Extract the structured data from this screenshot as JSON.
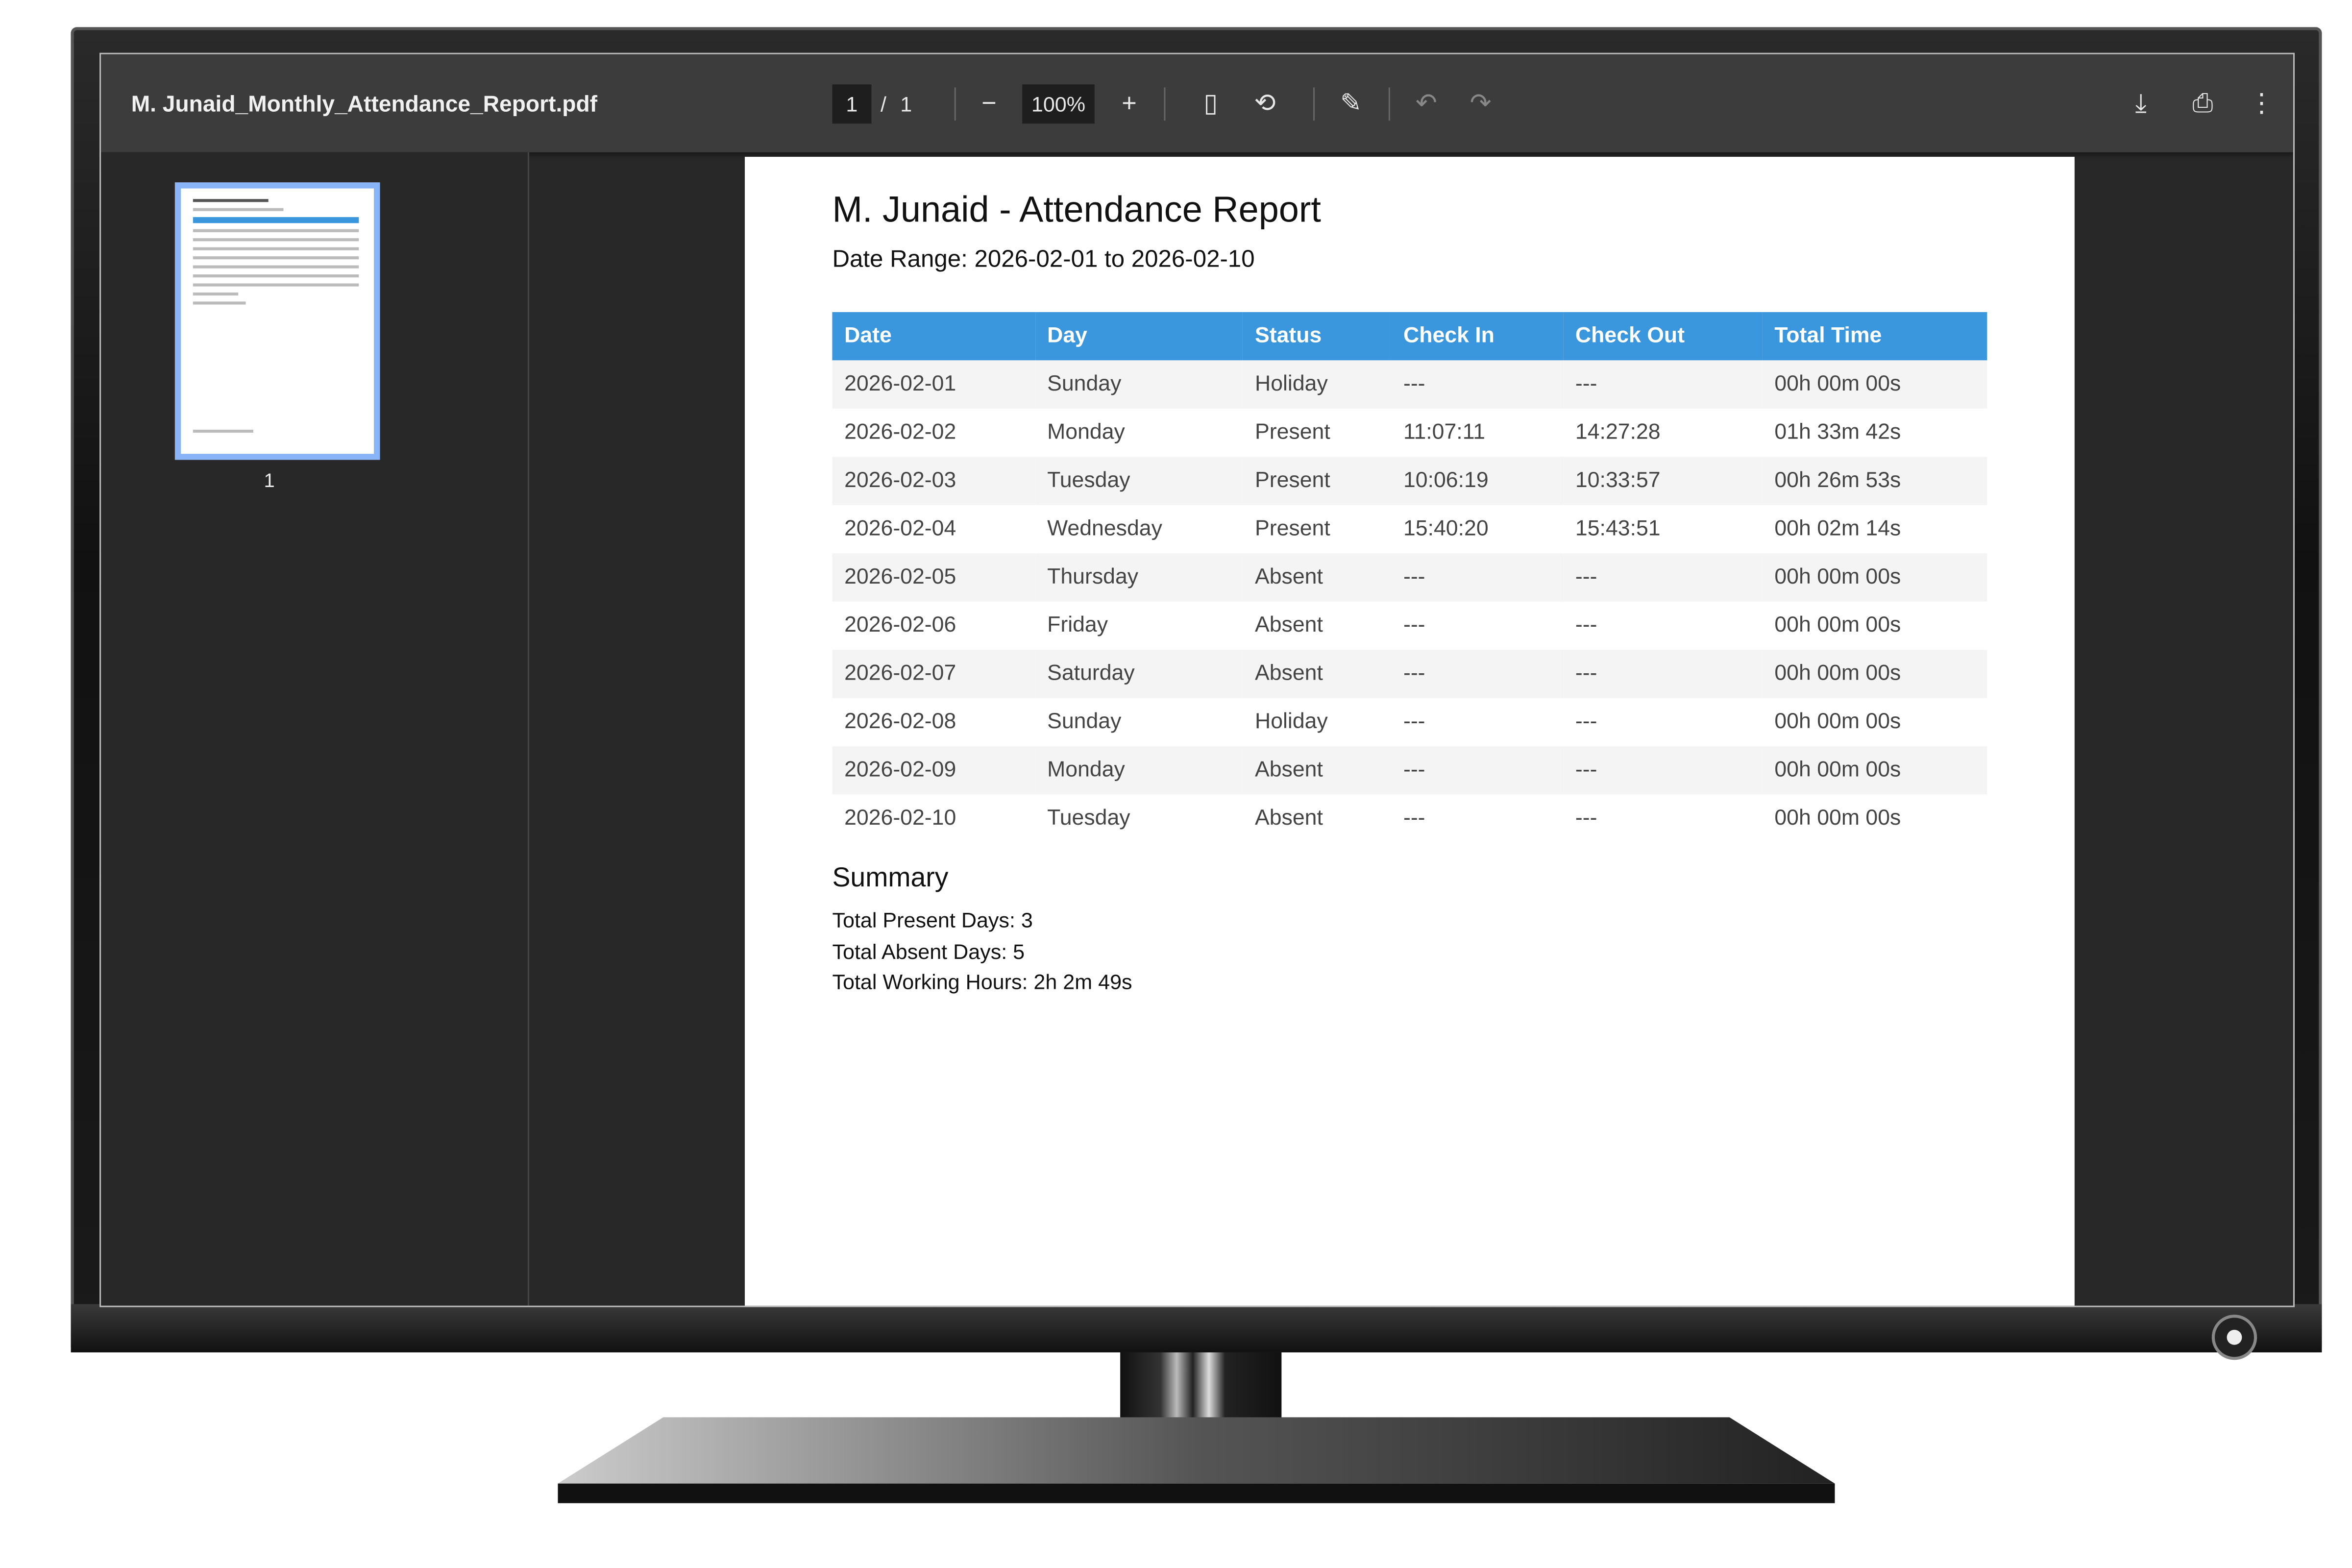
{
  "viewer": {
    "file_name": "M. Junaid_Monthly_Attendance_Report.pdf",
    "current_page": "1",
    "page_separator": "/",
    "total_pages": "1",
    "zoom": "100%",
    "icons": [
      "zoom-out-icon",
      "zoom-in-icon",
      "fit-page-icon",
      "rotate-icon",
      "annotate-icon",
      "undo-icon",
      "redo-icon",
      "download-icon",
      "print-icon",
      "more-icon"
    ],
    "thumbnail_label": "1"
  },
  "report": {
    "title": "M. Junaid - Attendance Report",
    "date_range": "Date Range: 2026-02-01 to 2026-02-10",
    "header_color": "#3a96dd",
    "columns": [
      "Date",
      "Day",
      "Status",
      "Check In",
      "Check Out",
      "Total Time"
    ],
    "rows": [
      [
        "2026-02-01",
        "Sunday",
        "Holiday",
        "---",
        "---",
        "00h 00m 00s"
      ],
      [
        "2026-02-02",
        "Monday",
        "Present",
        "11:07:11",
        "14:27:28",
        "01h 33m 42s"
      ],
      [
        "2026-02-03",
        "Tuesday",
        "Present",
        "10:06:19",
        "10:33:57",
        "00h 26m 53s"
      ],
      [
        "2026-02-04",
        "Wednesday",
        "Present",
        "15:40:20",
        "15:43:51",
        "00h 02m 14s"
      ],
      [
        "2026-02-05",
        "Thursday",
        "Absent",
        "---",
        "---",
        "00h 00m 00s"
      ],
      [
        "2026-02-06",
        "Friday",
        "Absent",
        "---",
        "---",
        "00h 00m 00s"
      ],
      [
        "2026-02-07",
        "Saturday",
        "Absent",
        "---",
        "---",
        "00h 00m 00s"
      ],
      [
        "2026-02-08",
        "Sunday",
        "Holiday",
        "---",
        "---",
        "00h 00m 00s"
      ],
      [
        "2026-02-09",
        "Monday",
        "Absent",
        "---",
        "---",
        "00h 00m 00s"
      ],
      [
        "2026-02-10",
        "Tuesday",
        "Absent",
        "---",
        "---",
        "00h 00m 00s"
      ]
    ],
    "summary": {
      "heading": "Summary",
      "present": "Total Present Days: 3",
      "absent": "Total Absent Days: 5",
      "hours": "Total Working Hours: 2h 2m 49s"
    }
  }
}
